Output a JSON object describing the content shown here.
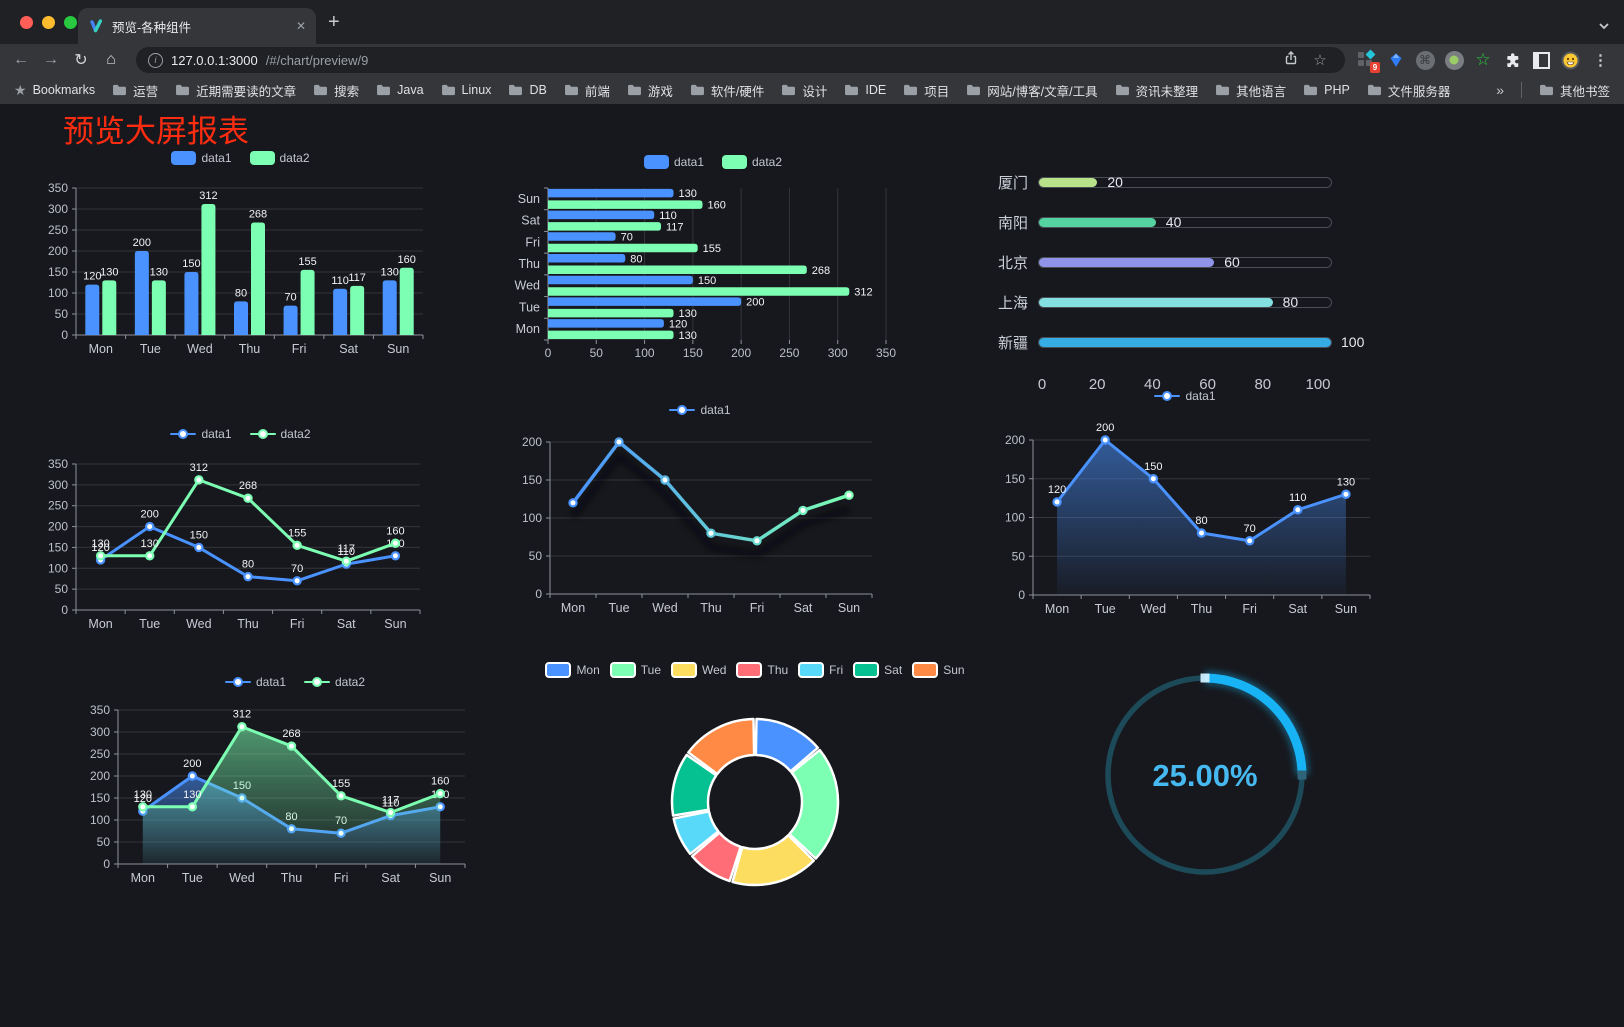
{
  "browser": {
    "traffic_lights": [
      "#ff5f57",
      "#febc2e",
      "#28c840"
    ],
    "tab": {
      "title": "预览-各种组件"
    },
    "url": {
      "host": "127.0.0.1:3000",
      "path": "/#/chart/preview/9"
    },
    "bookmarks_label": "Bookmarks",
    "bookmarks": [
      "运营",
      "近期需要读的文章",
      "搜索",
      "Java",
      "Linux",
      "DB",
      "前端",
      "游戏",
      "软件/硬件",
      "设计",
      "IDE",
      "项目",
      "网站/博客/文章/工具",
      "资讯未整理",
      "其他语言",
      "PHP",
      "文件服务器"
    ],
    "bookmarks_overflow": "»",
    "other_bookmarks": "其他书签",
    "extension_badge": "9"
  },
  "icons": {
    "back": "←",
    "forward": "→",
    "reload": "↻",
    "home": "⌂",
    "star": "☆",
    "menu": "⋮",
    "command": "⌘",
    "green_star": "☆",
    "close": "✕",
    "new_tab": "+",
    "info": "i",
    "bookmarks_star": "★"
  },
  "page": {
    "title": "预览大屏报表",
    "title_color": "#fb2c10",
    "background": "#17181d"
  },
  "chart_data": [
    {
      "id": "bar-vertical",
      "type": "bar",
      "legend_style": "rect",
      "categories": [
        "Mon",
        "Tue",
        "Wed",
        "Thu",
        "Fri",
        "Sat",
        "Sun"
      ],
      "ylim": [
        0,
        350
      ],
      "tick_step": 50,
      "labels": true,
      "grid": true,
      "series": [
        {
          "name": "data1",
          "color": "#4992ff",
          "values": [
            120,
            200,
            150,
            80,
            70,
            110,
            130
          ]
        },
        {
          "name": "data2",
          "color": "#7cffb2",
          "values": [
            130,
            130,
            312,
            268,
            155,
            117,
            160
          ]
        }
      ]
    },
    {
      "id": "bar-horizontal",
      "type": "hbar",
      "legend_style": "rect",
      "categories": [
        "Mon",
        "Tue",
        "Wed",
        "Thu",
        "Fri",
        "Sat",
        "Sun"
      ],
      "xlim": [
        0,
        350
      ],
      "tick_step": 50,
      "labels": true,
      "grid": true,
      "series": [
        {
          "name": "data1",
          "color": "#4992ff",
          "values": [
            120,
            200,
            150,
            80,
            70,
            110,
            130
          ]
        },
        {
          "name": "data2",
          "color": "#7cffb2",
          "values": [
            130,
            130,
            312,
            268,
            155,
            117,
            160
          ]
        }
      ]
    },
    {
      "id": "progress-bars",
      "type": "progress",
      "max": 100,
      "xticks": [
        0,
        20,
        40,
        60,
        80,
        100
      ],
      "items": [
        {
          "label": "厦门",
          "value": 20,
          "color": "#b9e38b"
        },
        {
          "label": "南阳",
          "value": 40,
          "color": "#54d3a1"
        },
        {
          "label": "北京",
          "value": 60,
          "color": "#8f94e8"
        },
        {
          "label": "上海",
          "value": 80,
          "color": "#83dfe0"
        },
        {
          "label": "新疆",
          "value": 100,
          "color": "#36ace4"
        }
      ]
    },
    {
      "id": "line-two-series",
      "type": "line",
      "legend_style": "line",
      "categories": [
        "Mon",
        "Tue",
        "Wed",
        "Thu",
        "Fri",
        "Sat",
        "Sun"
      ],
      "ylim": [
        0,
        350
      ],
      "tick_step": 50,
      "labels": true,
      "grid": true,
      "series": [
        {
          "name": "data1",
          "color": "#4992ff",
          "values": [
            120,
            200,
            150,
            80,
            70,
            110,
            130
          ]
        },
        {
          "name": "data2",
          "color": "#7cffb2",
          "values": [
            130,
            130,
            312,
            268,
            155,
            117,
            160
          ]
        }
      ]
    },
    {
      "id": "line-gradient",
      "type": "line-gradient",
      "legend_style": "line",
      "categories": [
        "Mon",
        "Tue",
        "Wed",
        "Thu",
        "Fri",
        "Sat",
        "Sun"
      ],
      "ylim": [
        0,
        200
      ],
      "tick_step": 50,
      "labels": false,
      "grid": true,
      "gradient": [
        "#4992ff",
        "#7cffb2"
      ],
      "shadow": true,
      "series": [
        {
          "name": "data1",
          "values": [
            120,
            200,
            150,
            80,
            70,
            110,
            130
          ]
        }
      ]
    },
    {
      "id": "area-single",
      "type": "line",
      "area": true,
      "legend_style": "line",
      "categories": [
        "Mon",
        "Tue",
        "Wed",
        "Thu",
        "Fri",
        "Sat",
        "Sun"
      ],
      "ylim": [
        0,
        200
      ],
      "tick_step": 50,
      "labels": true,
      "grid": true,
      "series": [
        {
          "name": "data1",
          "color": "#4992ff",
          "values": [
            120,
            200,
            150,
            80,
            70,
            110,
            130
          ]
        }
      ]
    },
    {
      "id": "area-two-series",
      "type": "line",
      "area": true,
      "legend_style": "line",
      "categories": [
        "Mon",
        "Tue",
        "Wed",
        "Thu",
        "Fri",
        "Sat",
        "Sun"
      ],
      "ylim": [
        0,
        350
      ],
      "tick_step": 50,
      "labels": true,
      "grid": true,
      "series": [
        {
          "name": "data1",
          "color": "#4992ff",
          "values": [
            120,
            200,
            150,
            80,
            70,
            110,
            130
          ]
        },
        {
          "name": "data2",
          "color": "#7cffb2",
          "values": [
            130,
            130,
            312,
            268,
            155,
            117,
            160
          ]
        }
      ]
    },
    {
      "id": "donut",
      "type": "donut",
      "legend_style": "rect-b",
      "items": [
        {
          "label": "Mon",
          "value": 120,
          "color": "#4992ff"
        },
        {
          "label": "Tue",
          "value": 200,
          "color": "#7cffb2"
        },
        {
          "label": "Wed",
          "value": 150,
          "color": "#fddd60"
        },
        {
          "label": "Thu",
          "value": 80,
          "color": "#ff6e76"
        },
        {
          "label": "Fri",
          "value": 70,
          "color": "#58d9f9"
        },
        {
          "label": "Sat",
          "value": 110,
          "color": "#05c091"
        },
        {
          "label": "Sun",
          "value": 130,
          "color": "#ff8a45"
        }
      ]
    },
    {
      "id": "gauge",
      "type": "gauge",
      "value": 25,
      "label": "25.00%",
      "color": "#18b3f5",
      "track_color": "#1d4a59",
      "text_color": "#47b9f1"
    }
  ]
}
